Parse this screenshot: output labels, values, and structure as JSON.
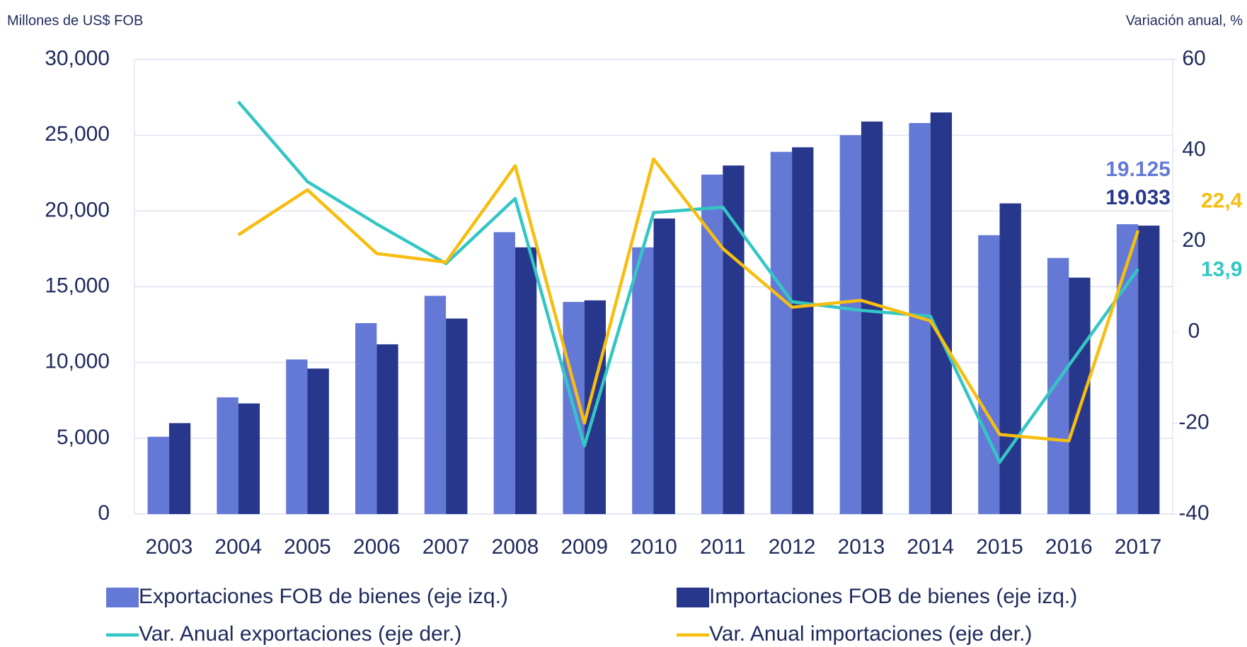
{
  "chart_data": {
    "type": "bar_line",
    "y_label": "Millones de US$ FOB",
    "y2_label": "Variación anual, %",
    "categories": [
      "2003",
      "2004",
      "2005",
      "2006",
      "2007",
      "2008",
      "2009",
      "2010",
      "2011",
      "2012",
      "2013",
      "2014",
      "2015",
      "2016",
      "2017"
    ],
    "series": [
      {
        "name": "Exportaciones FOB de bienes (eje izq.)",
        "color": "#6479d6",
        "kind": "bar",
        "values": [
          5100,
          7700,
          10200,
          12600,
          14400,
          18600,
          14000,
          17600,
          22400,
          23900,
          25000,
          25800,
          18400,
          16900,
          19125
        ],
        "value_labels": [
          null,
          null,
          null,
          null,
          null,
          null,
          null,
          null,
          null,
          null,
          null,
          null,
          null,
          null,
          "19.125"
        ]
      },
      {
        "name": "Importaciones FOB de bienes (eje izq.)",
        "color": "#27378c",
        "kind": "bar",
        "values": [
          6000,
          7300,
          9600,
          11200,
          12900,
          17600,
          14100,
          19500,
          23000,
          24200,
          25900,
          26500,
          20500,
          15600,
          19033
        ],
        "value_labels": [
          null,
          null,
          null,
          null,
          null,
          null,
          null,
          null,
          null,
          null,
          null,
          null,
          null,
          null,
          "19.033"
        ]
      },
      {
        "name": "Var. Anual exportaciones (eje der.)",
        "color": "#33c6c4",
        "kind": "line",
        "axis": "y2",
        "values": [
          null,
          50.7,
          33.1,
          23.8,
          15.1,
          29.4,
          -25,
          26.3,
          27.5,
          6.7,
          4.8,
          3.5,
          -28.6,
          -7.3,
          13.9
        ],
        "value_labels": [
          null,
          null,
          null,
          null,
          null,
          null,
          null,
          null,
          null,
          null,
          null,
          null,
          null,
          null,
          "13,9"
        ]
      },
      {
        "name": "Var. Anual importaciones (eje der.)",
        "color": "#f7bd0f",
        "kind": "line",
        "axis": "y2",
        "values": [
          null,
          21.4,
          31.3,
          17.3,
          15.4,
          36.6,
          -20,
          38.1,
          18.4,
          5.5,
          7,
          2.5,
          -22.5,
          -23.9,
          22.4
        ],
        "value_labels": [
          null,
          null,
          null,
          null,
          null,
          null,
          null,
          null,
          null,
          null,
          null,
          null,
          null,
          null,
          "22,4"
        ]
      }
    ],
    "ylim": [
      0,
      30000
    ],
    "yticks": [
      0,
      {
        "value": 5000,
        "label": "5,000"
      },
      {
        "value": 10000,
        "label": "10,000"
      },
      {
        "value": 15000,
        "label": "15,000"
      },
      {
        "value": 20000,
        "label": "20,000"
      },
      {
        "value": 25000,
        "label": "25,000"
      },
      {
        "value": 30000,
        "label": "30,000"
      }
    ],
    "y2lim": [
      -40,
      60
    ],
    "y2ticks": [
      -40,
      -20,
      0,
      20,
      40,
      60
    ],
    "grid": true
  }
}
